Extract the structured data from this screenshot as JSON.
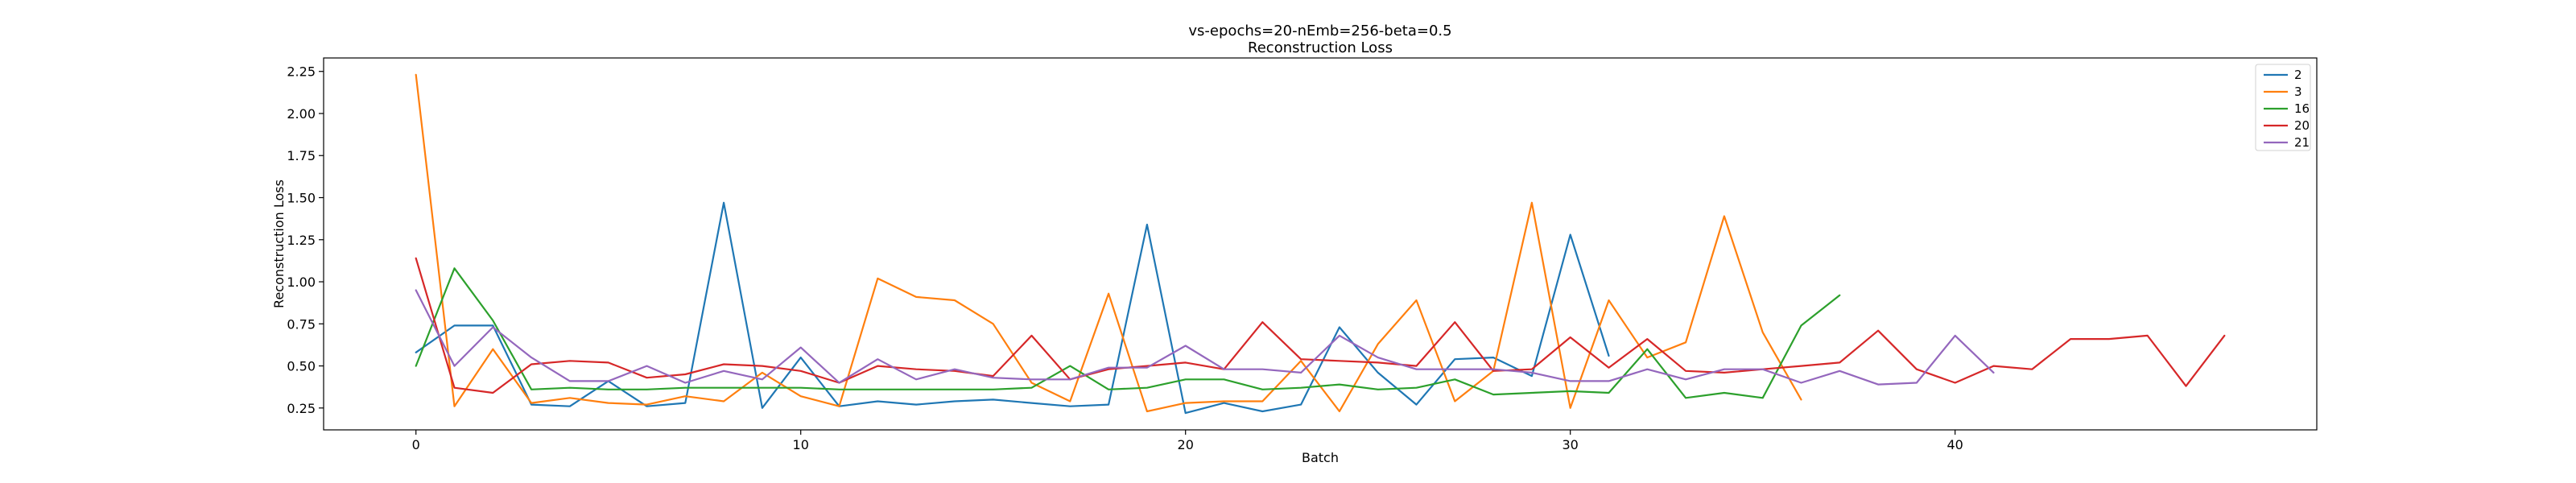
{
  "chart_data": {
    "type": "line",
    "title": "vs-epochs=20-nEmb=256-beta=0.5",
    "subtitle": "Reconstruction Loss",
    "xlabel": "Batch",
    "ylabel": "Reconstruction Loss",
    "xlim": [
      -2.4,
      49.4
    ],
    "ylim": [
      0.12,
      2.33
    ],
    "xticks": [
      0,
      10,
      20,
      30,
      40
    ],
    "yticks": [
      0.25,
      0.5,
      0.75,
      1.0,
      1.25,
      1.5,
      1.75,
      2.0,
      2.25
    ],
    "ytick_labels": [
      "0.25",
      "0.50",
      "0.75",
      "1.00",
      "1.25",
      "1.50",
      "1.75",
      "2.00",
      "2.25"
    ],
    "legend_position": "top-right",
    "grid": false,
    "series": [
      {
        "name": "2",
        "color": "#1f77b4",
        "values": [
          0.58,
          0.74,
          0.74,
          0.27,
          0.26,
          0.41,
          0.26,
          0.28,
          1.47,
          0.25,
          0.55,
          0.26,
          0.29,
          0.27,
          0.29,
          0.3,
          0.28,
          0.26,
          0.27,
          1.34,
          0.22,
          0.28,
          0.23,
          0.27,
          0.73,
          0.46,
          0.27,
          0.54,
          0.55,
          0.44,
          1.28,
          0.56
        ]
      },
      {
        "name": "3",
        "color": "#ff7f0e",
        "values": [
          2.23,
          0.26,
          0.6,
          0.28,
          0.31,
          0.28,
          0.27,
          0.32,
          0.29,
          0.46,
          0.32,
          0.26,
          1.02,
          0.91,
          0.89,
          0.75,
          0.4,
          0.29,
          0.93,
          0.23,
          0.28,
          0.29,
          0.29,
          0.53,
          0.23,
          0.63,
          0.89,
          0.29,
          0.47,
          1.47,
          0.25,
          0.89,
          0.55,
          0.64,
          1.39,
          0.7,
          0.3
        ]
      },
      {
        "name": "16",
        "color": "#2ca02c",
        "values": [
          0.5,
          1.08,
          0.77,
          0.36,
          0.37,
          0.36,
          0.36,
          0.37,
          0.37,
          0.37,
          0.37,
          0.36,
          0.36,
          0.36,
          0.36,
          0.36,
          0.37,
          0.5,
          0.36,
          0.37,
          0.42,
          0.42,
          0.36,
          0.37,
          0.39,
          0.36,
          0.37,
          0.42,
          0.33,
          0.34,
          0.35,
          0.34,
          0.6,
          0.31,
          0.34,
          0.31,
          0.74,
          0.92
        ]
      },
      {
        "name": "20",
        "color": "#d62728",
        "values": [
          1.14,
          0.37,
          0.34,
          0.51,
          0.53,
          0.52,
          0.43,
          0.45,
          0.51,
          0.5,
          0.47,
          0.4,
          0.5,
          0.48,
          0.47,
          0.44,
          0.68,
          0.42,
          0.48,
          0.5,
          0.52,
          0.48,
          0.76,
          0.54,
          0.53,
          0.52,
          0.5,
          0.76,
          0.47,
          0.48,
          0.67,
          0.49,
          0.66,
          0.47,
          0.46,
          0.48,
          0.5,
          0.52,
          0.71,
          0.48,
          0.4,
          0.5,
          0.48,
          0.66,
          0.66,
          0.68,
          0.38,
          0.68
        ]
      },
      {
        "name": "21",
        "color": "#9467bd",
        "values": [
          0.95,
          0.5,
          0.73,
          0.55,
          0.41,
          0.41,
          0.5,
          0.4,
          0.47,
          0.42,
          0.61,
          0.4,
          0.54,
          0.42,
          0.48,
          0.43,
          0.42,
          0.42,
          0.49,
          0.49,
          0.62,
          0.48,
          0.48,
          0.46,
          0.68,
          0.55,
          0.48,
          0.48,
          0.48,
          0.46,
          0.41,
          0.41,
          0.48,
          0.42,
          0.48,
          0.48,
          0.4,
          0.47,
          0.39,
          0.4,
          0.68,
          0.46
        ]
      }
    ]
  }
}
